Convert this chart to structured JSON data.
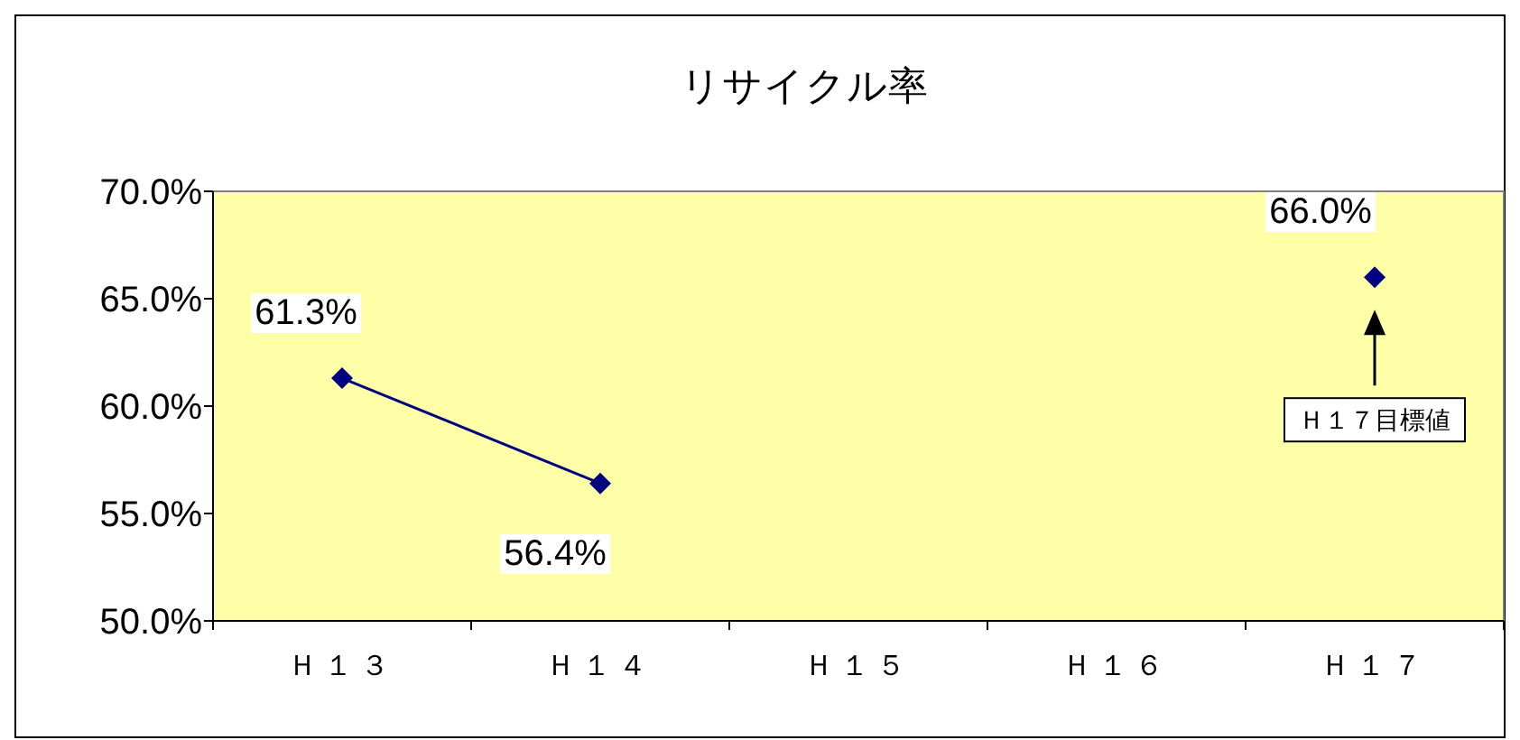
{
  "chart_data": {
    "type": "line",
    "title": "リサイクル率",
    "categories": [
      "Ｈ１３",
      "Ｈ１４",
      "Ｈ１５",
      "Ｈ１６",
      "Ｈ１７"
    ],
    "series": [
      {
        "color": "#000080",
        "values": [
          61.3,
          56.4,
          null,
          null,
          66.0
        ],
        "value_labels": [
          "61.3%",
          "56.4%",
          null,
          null,
          "66.0%"
        ]
      }
    ],
    "ylim": [
      50,
      70
    ],
    "yticks": [
      {
        "value": 50,
        "label": "50.0%"
      },
      {
        "value": 55,
        "label": "55.0%"
      },
      {
        "value": 60,
        "label": "60.0%"
      },
      {
        "value": 65,
        "label": "65.0%"
      },
      {
        "value": 70,
        "label": "70.0%"
      }
    ],
    "annotations": [
      "Ｈ１７目標値"
    ],
    "marker": "diamond",
    "line_style": "solid",
    "grid": false
  }
}
